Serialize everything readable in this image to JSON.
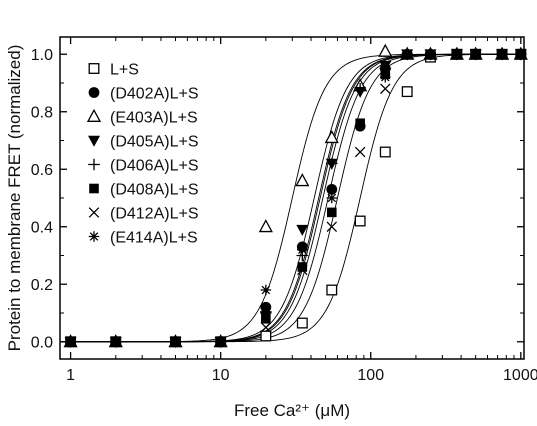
{
  "chart_data": {
    "type": "scatter",
    "title": "",
    "xlabel": "Free Ca²⁺ (μM)",
    "ylabel": "Protein to membrane FRET (normalized)",
    "x_scale": "log",
    "xlim": [
      0.85,
      1050
    ],
    "ylim": [
      -0.06,
      1.06
    ],
    "x_ticks": [
      1,
      10,
      100,
      1000
    ],
    "x_tick_labels": [
      "1",
      "10",
      "100",
      "1000"
    ],
    "y_ticks": [
      0.0,
      0.2,
      0.4,
      0.6,
      0.8,
      1.0
    ],
    "y_tick_labels": [
      "0.0",
      "0.2",
      "0.4",
      "0.6",
      "0.8",
      "1.0"
    ],
    "grid": false,
    "legend_position": "top-left",
    "series": [
      {
        "name": "L+S",
        "marker": "open-square",
        "fit_ec50": 85,
        "points": [
          [
            1,
            0.0
          ],
          [
            2,
            0.0
          ],
          [
            5,
            0.0
          ],
          [
            10,
            0.0
          ],
          [
            20,
            0.02
          ],
          [
            35,
            0.065
          ],
          [
            55,
            0.18
          ],
          [
            85,
            0.42
          ],
          [
            125,
            0.66
          ],
          [
            175,
            0.87
          ],
          [
            250,
            0.99
          ],
          [
            375,
            1.0
          ],
          [
            500,
            1.0
          ],
          [
            750,
            1.0
          ],
          [
            1000,
            1.0
          ]
        ]
      },
      {
        "name": "(D402A)L+S",
        "marker": "filled-circle",
        "fit_ec50": 48,
        "points": [
          [
            1,
            0.0
          ],
          [
            2,
            0.0
          ],
          [
            5,
            0.0
          ],
          [
            10,
            0.0
          ],
          [
            20,
            0.12
          ],
          [
            35,
            0.33
          ],
          [
            55,
            0.53
          ],
          [
            85,
            0.75
          ],
          [
            125,
            0.95
          ],
          [
            175,
            1.0
          ],
          [
            250,
            1.0
          ],
          [
            375,
            1.0
          ],
          [
            500,
            1.0
          ],
          [
            750,
            1.0
          ],
          [
            1000,
            1.0
          ]
        ]
      },
      {
        "name": "(E403A)L+S",
        "marker": "open-triangle",
        "fit_ec50": 30,
        "points": [
          [
            1,
            0.0
          ],
          [
            2,
            0.0
          ],
          [
            5,
            0.0
          ],
          [
            10,
            0.0
          ],
          [
            20,
            0.4
          ],
          [
            35,
            0.56
          ],
          [
            55,
            0.71
          ],
          [
            85,
            0.89
          ],
          [
            125,
            1.01
          ],
          [
            175,
            1.0
          ],
          [
            250,
            1.0
          ],
          [
            375,
            1.0
          ],
          [
            500,
            1.0
          ],
          [
            750,
            1.0
          ],
          [
            1000,
            1.0
          ]
        ]
      },
      {
        "name": "(D405A)L+S",
        "marker": "filled-down-triangle",
        "fit_ec50": 42,
        "points": [
          [
            1,
            0.0
          ],
          [
            2,
            0.0
          ],
          [
            5,
            0.0
          ],
          [
            10,
            0.0
          ],
          [
            20,
            0.09
          ],
          [
            35,
            0.39
          ],
          [
            55,
            0.62
          ],
          [
            85,
            0.87
          ],
          [
            125,
            0.96
          ],
          [
            175,
            1.0
          ],
          [
            250,
            1.0
          ],
          [
            375,
            1.0
          ],
          [
            500,
            1.0
          ],
          [
            750,
            1.0
          ],
          [
            1000,
            1.0
          ]
        ]
      },
      {
        "name": "(D406A)L+S",
        "marker": "plus",
        "fit_ec50": 45,
        "points": [
          [
            1,
            0.0
          ],
          [
            2,
            0.0
          ],
          [
            5,
            0.0
          ],
          [
            10,
            0.0
          ],
          [
            20,
            0.1
          ],
          [
            35,
            0.3
          ],
          [
            55,
            0.62
          ],
          [
            85,
            0.88
          ],
          [
            125,
            0.95
          ],
          [
            175,
            1.0
          ],
          [
            250,
            1.0
          ],
          [
            375,
            1.0
          ],
          [
            500,
            1.0
          ],
          [
            750,
            1.0
          ],
          [
            1000,
            1.0
          ]
        ]
      },
      {
        "name": "(D408A)L+S",
        "marker": "filled-square",
        "fit_ec50": 52,
        "points": [
          [
            1,
            0.0
          ],
          [
            2,
            0.0
          ],
          [
            5,
            0.0
          ],
          [
            10,
            0.0
          ],
          [
            20,
            0.08
          ],
          [
            35,
            0.26
          ],
          [
            55,
            0.45
          ],
          [
            85,
            0.76
          ],
          [
            125,
            0.93
          ],
          [
            175,
            1.0
          ],
          [
            250,
            1.0
          ],
          [
            375,
            1.0
          ],
          [
            500,
            1.0
          ],
          [
            750,
            1.0
          ],
          [
            1000,
            1.0
          ]
        ]
      },
      {
        "name": "(D412A)L+S",
        "marker": "cross",
        "fit_ec50": 60,
        "points": [
          [
            1,
            0.0
          ],
          [
            2,
            0.0
          ],
          [
            5,
            0.0
          ],
          [
            10,
            0.0
          ],
          [
            20,
            0.05
          ],
          [
            35,
            0.25
          ],
          [
            55,
            0.4
          ],
          [
            85,
            0.66
          ],
          [
            125,
            0.88
          ],
          [
            175,
            1.0
          ],
          [
            250,
            1.0
          ],
          [
            375,
            1.0
          ],
          [
            500,
            1.0
          ],
          [
            750,
            1.0
          ],
          [
            1000,
            1.0
          ]
        ]
      },
      {
        "name": "(E414A)L+S",
        "marker": "asterisk",
        "fit_ec50": 46,
        "points": [
          [
            1,
            0.0
          ],
          [
            2,
            0.0
          ],
          [
            5,
            0.0
          ],
          [
            10,
            0.0
          ],
          [
            20,
            0.18
          ],
          [
            35,
            0.32
          ],
          [
            55,
            0.5
          ],
          [
            85,
            0.75
          ],
          [
            125,
            0.92
          ],
          [
            175,
            1.0
          ],
          [
            250,
            1.0
          ],
          [
            375,
            1.0
          ],
          [
            500,
            1.0
          ],
          [
            750,
            1.0
          ],
          [
            1000,
            1.0
          ]
        ]
      }
    ]
  }
}
